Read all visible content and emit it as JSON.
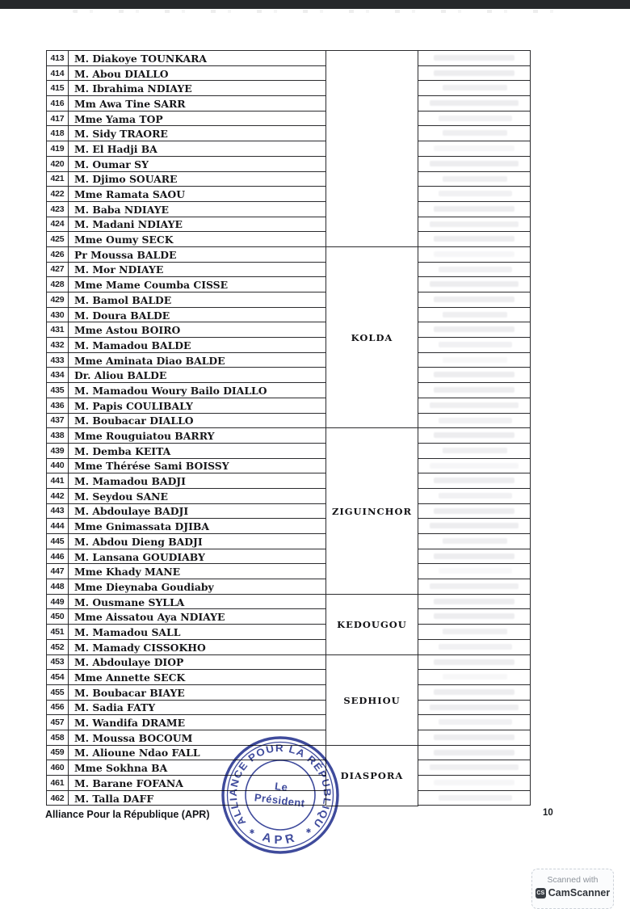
{
  "table": {
    "rows": [
      {
        "num": "413",
        "name": "M. Diakoye TOUNKARA"
      },
      {
        "num": "414",
        "name": "M. Abou DIALLO"
      },
      {
        "num": "415",
        "name": "M. Ibrahima NDIAYE"
      },
      {
        "num": "416",
        "name": "Mm Awa Tine SARR"
      },
      {
        "num": "417",
        "name": "Mme Yama TOP"
      },
      {
        "num": "418",
        "name": "M. Sidy TRAORE"
      },
      {
        "num": "419",
        "name": "M. El Hadji BA"
      },
      {
        "num": "420",
        "name": "M. Oumar SY"
      },
      {
        "num": "421",
        "name": "M. Djimo SOUARE"
      },
      {
        "num": "422",
        "name": "Mme Ramata SAOU"
      },
      {
        "num": "423",
        "name": "M. Baba NDIAYE"
      },
      {
        "num": "424",
        "name": "M. Madani NDIAYE"
      },
      {
        "num": "425",
        "name": "Mme Oumy SECK"
      },
      {
        "num": "426",
        "name": "Pr Moussa BALDE"
      },
      {
        "num": "427",
        "name": "M. Mor NDIAYE"
      },
      {
        "num": "428",
        "name": "Mme Mame Coumba CISSE"
      },
      {
        "num": "429",
        "name": "M. Bamol BALDE"
      },
      {
        "num": "430",
        "name": "M. Doura BALDE"
      },
      {
        "num": "431",
        "name": "Mme Astou BOIRO"
      },
      {
        "num": "432",
        "name": "M. Mamadou BALDE"
      },
      {
        "num": "433",
        "name": "Mme Aminata Diao BALDE"
      },
      {
        "num": "434",
        "name": "Dr. Aliou BALDE"
      },
      {
        "num": "435",
        "name": "M. Mamadou Woury Bailo DIALLO"
      },
      {
        "num": "436",
        "name": "M. Papis COULIBALY"
      },
      {
        "num": "437",
        "name": "M. Boubacar DIALLO"
      },
      {
        "num": "438",
        "name": "Mme Rouguiatou BARRY"
      },
      {
        "num": "439",
        "name": "M. Demba KEITA"
      },
      {
        "num": "440",
        "name": "Mme Thérése Sami BOISSY"
      },
      {
        "num": "441",
        "name": "M. Mamadou BADJI"
      },
      {
        "num": "442",
        "name": "M. Seydou SANE"
      },
      {
        "num": "443",
        "name": "M. Abdoulaye BADJI"
      },
      {
        "num": "444",
        "name": "Mme Gnimassata DJIBA"
      },
      {
        "num": "445",
        "name": "M. Abdou Dieng BADJI"
      },
      {
        "num": "446",
        "name": "M. Lansana GOUDIABY"
      },
      {
        "num": "447",
        "name": "Mme Khady MANE"
      },
      {
        "num": "448",
        "name": "Mme Dieynaba Goudiaby"
      },
      {
        "num": "449",
        "name": "M. Ousmane SYLLA"
      },
      {
        "num": "450",
        "name": "Mme Aissatou Aya NDIAYE"
      },
      {
        "num": "451",
        "name": "M. Mamadou SALL"
      },
      {
        "num": "452",
        "name": "M. Mamady CISSOKHO"
      },
      {
        "num": "453",
        "name": "M. Abdoulaye DIOP"
      },
      {
        "num": "454",
        "name": "Mme Annette SECK"
      },
      {
        "num": "455",
        "name": "M. Boubacar BIAYE"
      },
      {
        "num": "456",
        "name": "M. Sadia FATY"
      },
      {
        "num": "457",
        "name": "M. Wandifa DRAME"
      },
      {
        "num": "458",
        "name": "M. Moussa BOCOUM"
      },
      {
        "num": "459",
        "name": "M. Alioune Ndao FALL"
      },
      {
        "num": "460",
        "name": "Mme Sokhna BA"
      },
      {
        "num": "461",
        "name": "M. Barane FOFANA"
      },
      {
        "num": "462",
        "name": "M. Talla DAFF"
      }
    ],
    "regions": [
      {
        "label": "",
        "rows": 13
      },
      {
        "label": "KOLDA",
        "rows": 12
      },
      {
        "label": "ZIGUINCHOR",
        "rows": 11
      },
      {
        "label": "KEDOUGOU",
        "rows": 4
      },
      {
        "label": "SEDHIOU",
        "rows": 6
      },
      {
        "label": "DIASPORA",
        "rows": 4
      }
    ]
  },
  "stamp": {
    "ring_text": "ALLIANCE POUR LA RÉPUBLIQUE",
    "bottom_text": "APR",
    "center_line1": "Le",
    "center_line2": "Président",
    "star": "✱",
    "color": "#2e3b94"
  },
  "footer": {
    "left_text": "Alliance Pour la République (APR)",
    "page_number": "10"
  },
  "scanner_badge": {
    "line1": "Scanned with",
    "brand": "CamScanner",
    "logo": "CS"
  }
}
